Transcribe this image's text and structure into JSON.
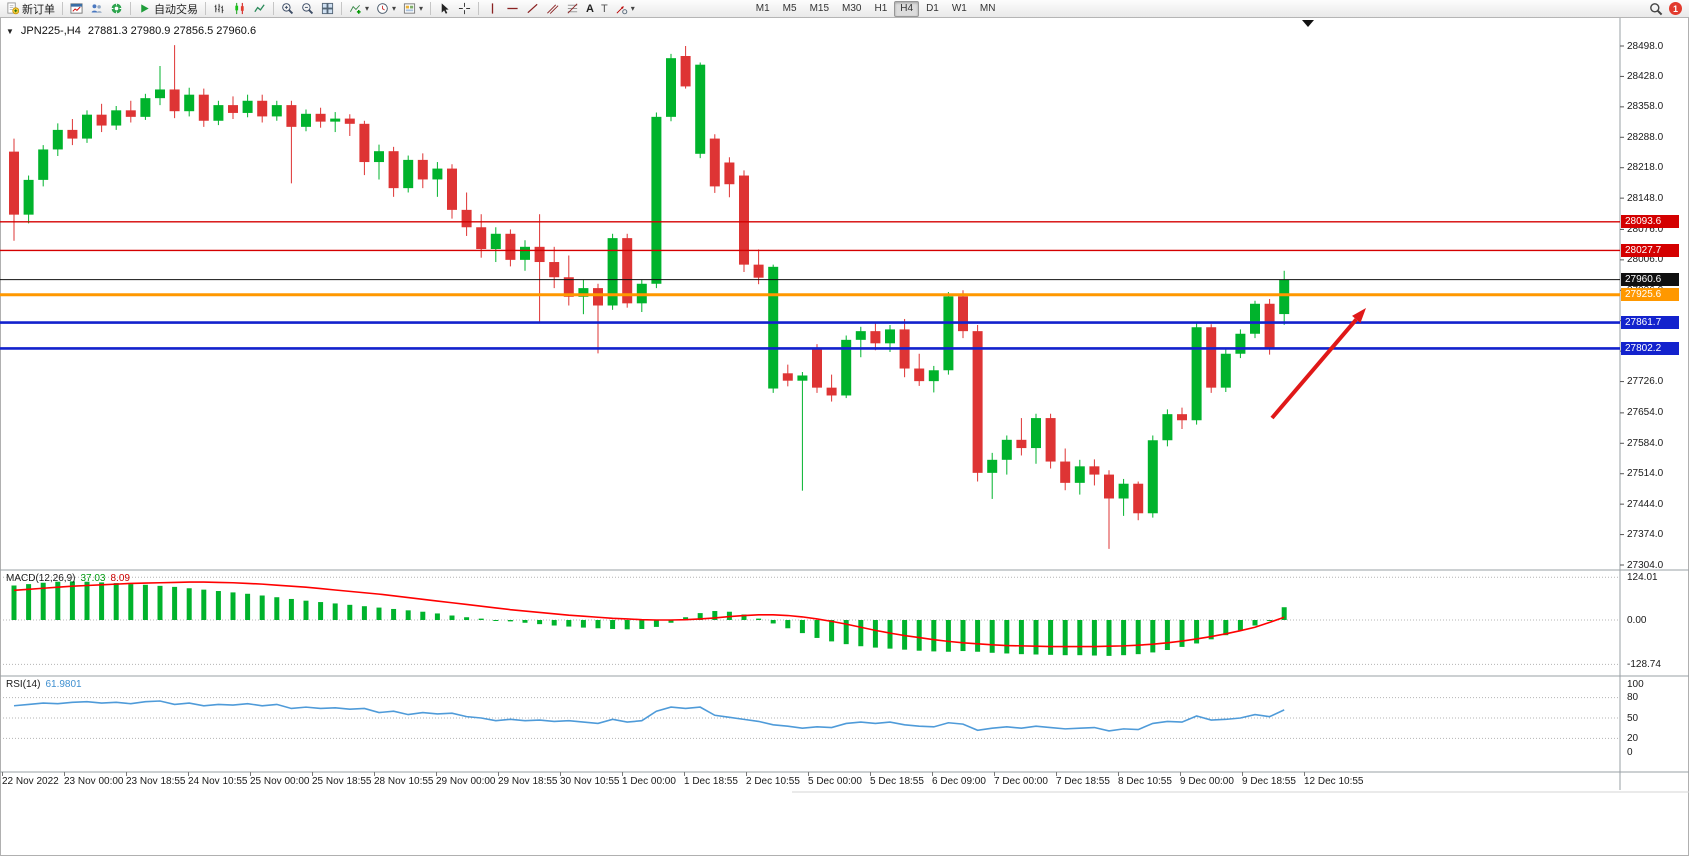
{
  "toolbar": {
    "new_order_label": "新订单",
    "auto_trading_label": "自动交易",
    "timeframe_labels": [
      "M1",
      "M5",
      "M15",
      "M30",
      "H1",
      "H4",
      "D1",
      "W1",
      "MN"
    ],
    "active_timeframe": "H4",
    "notification_count": "1",
    "icon_glyphs": {
      "dropdown_caret": "▾",
      "text_tool": "A",
      "label_tool": "T"
    }
  },
  "chart": {
    "title_marker": "▼",
    "symbol_title": "JPN225-,H4",
    "ohlc_text": "27881.3 27980.9 27856.5 27960.6"
  },
  "macd": {
    "name": "MACD(12,26,9)",
    "value_main": "37.03",
    "value_signal": "8.09",
    "scale_labels": [
      "124.01",
      "0.00",
      "-128.74"
    ]
  },
  "rsi": {
    "name": "RSI(14)",
    "value": "61.9801",
    "scale_labels": [
      "100",
      "80",
      "50",
      "20",
      "0"
    ]
  },
  "chart_data": {
    "type": "candlestick",
    "symbol": "JPN225-",
    "timeframe": "H4",
    "last_ohlc": {
      "open": 27881.3,
      "high": 27980.9,
      "low": 27856.5,
      "close": 27960.6
    },
    "y_axis_ticks": [
      "28498.0",
      "28428.0",
      "28358.0",
      "28288.0",
      "28218.0",
      "28148.0",
      "28076.0",
      "28006.0",
      "27936.0",
      "27866.0",
      "27796.0",
      "27726.0",
      "27654.0",
      "27584.0",
      "27514.0",
      "27444.0",
      "27374.0",
      "27304.0"
    ],
    "x_axis_labels": [
      "22 Nov 2022",
      "23 Nov 00:00",
      "23 Nov 18:55",
      "24 Nov 10:55",
      "25 Nov 00:00",
      "25 Nov 18:55",
      "28 Nov 10:55",
      "29 Nov 00:00",
      "29 Nov 18:55",
      "30 Nov 10:55",
      "1 Dec 00:00",
      "1 Dec 18:55",
      "2 Dec 10:55",
      "5 Dec 00:00",
      "5 Dec 18:55",
      "6 Dec 09:00",
      "7 Dec 00:00",
      "7 Dec 18:55",
      "8 Dec 10:55",
      "9 Dec 00:00",
      "9 Dec 18:55",
      "12 Dec 10:55"
    ],
    "candles_ohlc": [
      [
        28255,
        28285,
        28050,
        28110
      ],
      [
        28110,
        28200,
        28090,
        28190
      ],
      [
        28190,
        28270,
        28175,
        28260
      ],
      [
        28260,
        28320,
        28245,
        28305
      ],
      [
        28305,
        28330,
        28270,
        28285
      ],
      [
        28285,
        28350,
        28275,
        28340
      ],
      [
        28340,
        28365,
        28300,
        28315
      ],
      [
        28315,
        28360,
        28305,
        28350
      ],
      [
        28350,
        28372,
        28322,
        28335
      ],
      [
        28335,
        28388,
        28328,
        28378
      ],
      [
        28378,
        28452,
        28362,
        28398
      ],
      [
        28398,
        28500,
        28332,
        28348
      ],
      [
        28348,
        28402,
        28336,
        28386
      ],
      [
        28386,
        28400,
        28312,
        28326
      ],
      [
        28326,
        28372,
        28316,
        28362
      ],
      [
        28362,
        28382,
        28330,
        28344
      ],
      [
        28344,
        28386,
        28334,
        28372
      ],
      [
        28372,
        28386,
        28322,
        28336
      ],
      [
        28336,
        28372,
        28326,
        28362
      ],
      [
        28362,
        28372,
        28182,
        28312
      ],
      [
        28312,
        28352,
        28302,
        28342
      ],
      [
        28342,
        28356,
        28310,
        28324
      ],
      [
        28324,
        28346,
        28300,
        28331
      ],
      [
        28331,
        28341,
        28291,
        28319
      ],
      [
        28319,
        28326,
        28201,
        28231
      ],
      [
        28231,
        28271,
        28191,
        28256
      ],
      [
        28256,
        28266,
        28151,
        28171
      ],
      [
        28171,
        28246,
        28161,
        28236
      ],
      [
        28236,
        28251,
        28171,
        28191
      ],
      [
        28191,
        28231,
        28151,
        28216
      ],
      [
        28216,
        28226,
        28101,
        28121
      ],
      [
        28121,
        28161,
        28061,
        28081
      ],
      [
        28081,
        28111,
        28011,
        28031
      ],
      [
        28031,
        28081,
        28001,
        28066
      ],
      [
        28066,
        28076,
        27991,
        28006
      ],
      [
        28006,
        28051,
        27981,
        28036
      ],
      [
        28036,
        28111,
        27861,
        28001
      ],
      [
        28001,
        28036,
        27941,
        27966
      ],
      [
        27966,
        28016,
        27901,
        27921
      ],
      [
        27921,
        27961,
        27881,
        27941
      ],
      [
        27941,
        27951,
        27791,
        27901
      ],
      [
        27901,
        28066,
        27891,
        28056
      ],
      [
        28056,
        28066,
        27896,
        27906
      ],
      [
        27906,
        27961,
        27886,
        27951
      ],
      [
        27951,
        28345,
        27941,
        28335
      ],
      [
        28335,
        28480,
        28325,
        28470
      ],
      [
        28475,
        28498,
        28400,
        28405
      ],
      [
        28250,
        28460,
        28240,
        28455
      ],
      [
        28285,
        28295,
        28160,
        28175
      ],
      [
        28230,
        28242,
        28150,
        28180
      ],
      [
        28200,
        28212,
        27978,
        27995
      ],
      [
        27995,
        28030,
        27950,
        27965
      ],
      [
        27710,
        27995,
        27700,
        27990
      ],
      [
        27745,
        27765,
        27715,
        27728
      ],
      [
        27728,
        27748,
        27475,
        27740
      ],
      [
        27800,
        27812,
        27700,
        27712
      ],
      [
        27712,
        27742,
        27680,
        27694
      ],
      [
        27694,
        27832,
        27688,
        27822
      ],
      [
        27822,
        27852,
        27782,
        27842
      ],
      [
        27842,
        27862,
        27798,
        27814
      ],
      [
        27814,
        27856,
        27794,
        27846
      ],
      [
        27846,
        27870,
        27736,
        27756
      ],
      [
        27756,
        27790,
        27716,
        27727
      ],
      [
        27727,
        27762,
        27701,
        27752
      ],
      [
        27752,
        27932,
        27742,
        27922
      ],
      [
        27922,
        27936,
        27826,
        27842
      ],
      [
        27842,
        27856,
        27496,
        27516
      ],
      [
        27516,
        27562,
        27456,
        27546
      ],
      [
        27546,
        27602,
        27512,
        27592
      ],
      [
        27592,
        27642,
        27556,
        27573
      ],
      [
        27573,
        27652,
        27537,
        27642
      ],
      [
        27642,
        27652,
        27526,
        27542
      ],
      [
        27542,
        27572,
        27476,
        27493
      ],
      [
        27493,
        27546,
        27466,
        27531
      ],
      [
        27531,
        27547,
        27487,
        27512
      ],
      [
        27512,
        27522,
        27341,
        27457
      ],
      [
        27457,
        27502,
        27417,
        27491
      ],
      [
        27491,
        27496,
        27407,
        27423
      ],
      [
        27423,
        27602,
        27413,
        27591
      ],
      [
        27591,
        27662,
        27577,
        27651
      ],
      [
        27651,
        27666,
        27617,
        27637
      ],
      [
        27637,
        27862,
        27627,
        27851
      ],
      [
        27851,
        27858,
        27700,
        27712
      ],
      [
        27712,
        27800,
        27702,
        27790
      ],
      [
        27790,
        27846,
        27780,
        27836
      ],
      [
        27836,
        27912,
        27826,
        27905
      ],
      [
        27905,
        27916,
        27788,
        27800
      ],
      [
        27881.3,
        27980.9,
        27856.5,
        27960.6
      ]
    ],
    "levels": [
      {
        "price": 28093.6,
        "label": "28093.6",
        "color": "#d40000",
        "width": 1.4,
        "kind": "resistance-line"
      },
      {
        "price": 28027.7,
        "label": "28027.7",
        "color": "#d40000",
        "width": 1.4,
        "kind": "resistance-line"
      },
      {
        "price": 27960.6,
        "label": "27960.6",
        "color": "#101010",
        "width": 1,
        "kind": "bid-price-line"
      },
      {
        "price": 27925.6,
        "label": "27925.6",
        "color": "#ff9800",
        "width": 3,
        "kind": "support-line"
      },
      {
        "price": 27861.7,
        "label": "27861.7",
        "color": "#1322cd",
        "width": 2.6,
        "kind": "support-line"
      },
      {
        "price": 27802.2,
        "label": "27802.2",
        "color": "#1322cd",
        "width": 2.6,
        "kind": "support-line"
      }
    ],
    "colors": {
      "up": "#00b32c",
      "down": "#de3434",
      "macd_hist": "#00b32c",
      "macd_signal": "#ff0000",
      "rsi_line": "#4f9bd9",
      "arrow": "#e01818"
    },
    "macd": {
      "histogram": [
        100,
        104,
        108,
        111,
        112,
        111,
        109,
        107,
        104,
        102,
        99,
        96,
        92,
        88,
        84,
        80,
        76,
        71,
        66,
        61,
        56,
        52,
        48,
        44,
        40,
        36,
        32,
        28,
        24,
        19,
        13,
        8,
        4,
        0,
        -4,
        -8,
        -12,
        -16,
        -19,
        -22,
        -24,
        -26,
        -27,
        -26,
        -20,
        -8,
        8,
        20,
        26,
        24,
        16,
        4,
        -10,
        -24,
        -38,
        -52,
        -62,
        -70,
        -76,
        -80,
        -83,
        -86,
        -89,
        -91,
        -92,
        -90,
        -92,
        -95,
        -97,
        -99,
        -100,
        -101,
        -102,
        -102,
        -103,
        -104,
        -102,
        -99,
        -94,
        -87,
        -78,
        -68,
        -56,
        -44,
        -30,
        -16,
        0,
        37.03
      ],
      "signal": [
        86,
        89,
        92,
        95,
        98,
        100,
        102,
        104,
        106,
        107,
        108,
        109,
        110,
        110,
        109,
        108,
        106,
        104,
        101,
        98,
        95,
        91,
        87,
        83,
        79,
        75,
        70,
        65,
        60,
        55,
        50,
        45,
        40,
        35,
        30,
        26,
        22,
        18,
        14,
        11,
        8,
        5,
        3,
        1,
        0,
        0,
        1,
        3,
        6,
        10,
        13,
        15,
        15,
        13,
        9,
        3,
        -4,
        -12,
        -21,
        -30,
        -38,
        -45,
        -51,
        -57,
        -62,
        -66,
        -69,
        -72,
        -74,
        -75,
        -76,
        -77,
        -77,
        -77,
        -77,
        -76,
        -75,
        -73,
        -70,
        -66,
        -61,
        -55,
        -48,
        -40,
        -31,
        -21,
        -7,
        8.09
      ],
      "scale": {
        "max": 124.01,
        "zero": 0,
        "min": -128.74
      }
    },
    "rsi": {
      "values": [
        68,
        70,
        72,
        71,
        73,
        74,
        72,
        73,
        71,
        74,
        75,
        70,
        72,
        68,
        70,
        69,
        71,
        68,
        70,
        64,
        66,
        64,
        65,
        63,
        64,
        58,
        60,
        55,
        58,
        56,
        57,
        52,
        50,
        46,
        48,
        46,
        47,
        45,
        46,
        44,
        42,
        48,
        44,
        46,
        60,
        66,
        64,
        66,
        54,
        51,
        48,
        45,
        40,
        38,
        35,
        37,
        36,
        42,
        44,
        42,
        44,
        40,
        38,
        37,
        43,
        41,
        32,
        35,
        37,
        35,
        38,
        36,
        34,
        35,
        36,
        31,
        34,
        33,
        42,
        45,
        44,
        53,
        47,
        48,
        50,
        55,
        52,
        61.98
      ],
      "levels": [
        80,
        50,
        20
      ],
      "range": [
        0,
        100
      ]
    },
    "annotations": [
      {
        "type": "arrow",
        "from": [
          1272,
          418
        ],
        "to": [
          1366,
          308
        ]
      }
    ]
  }
}
